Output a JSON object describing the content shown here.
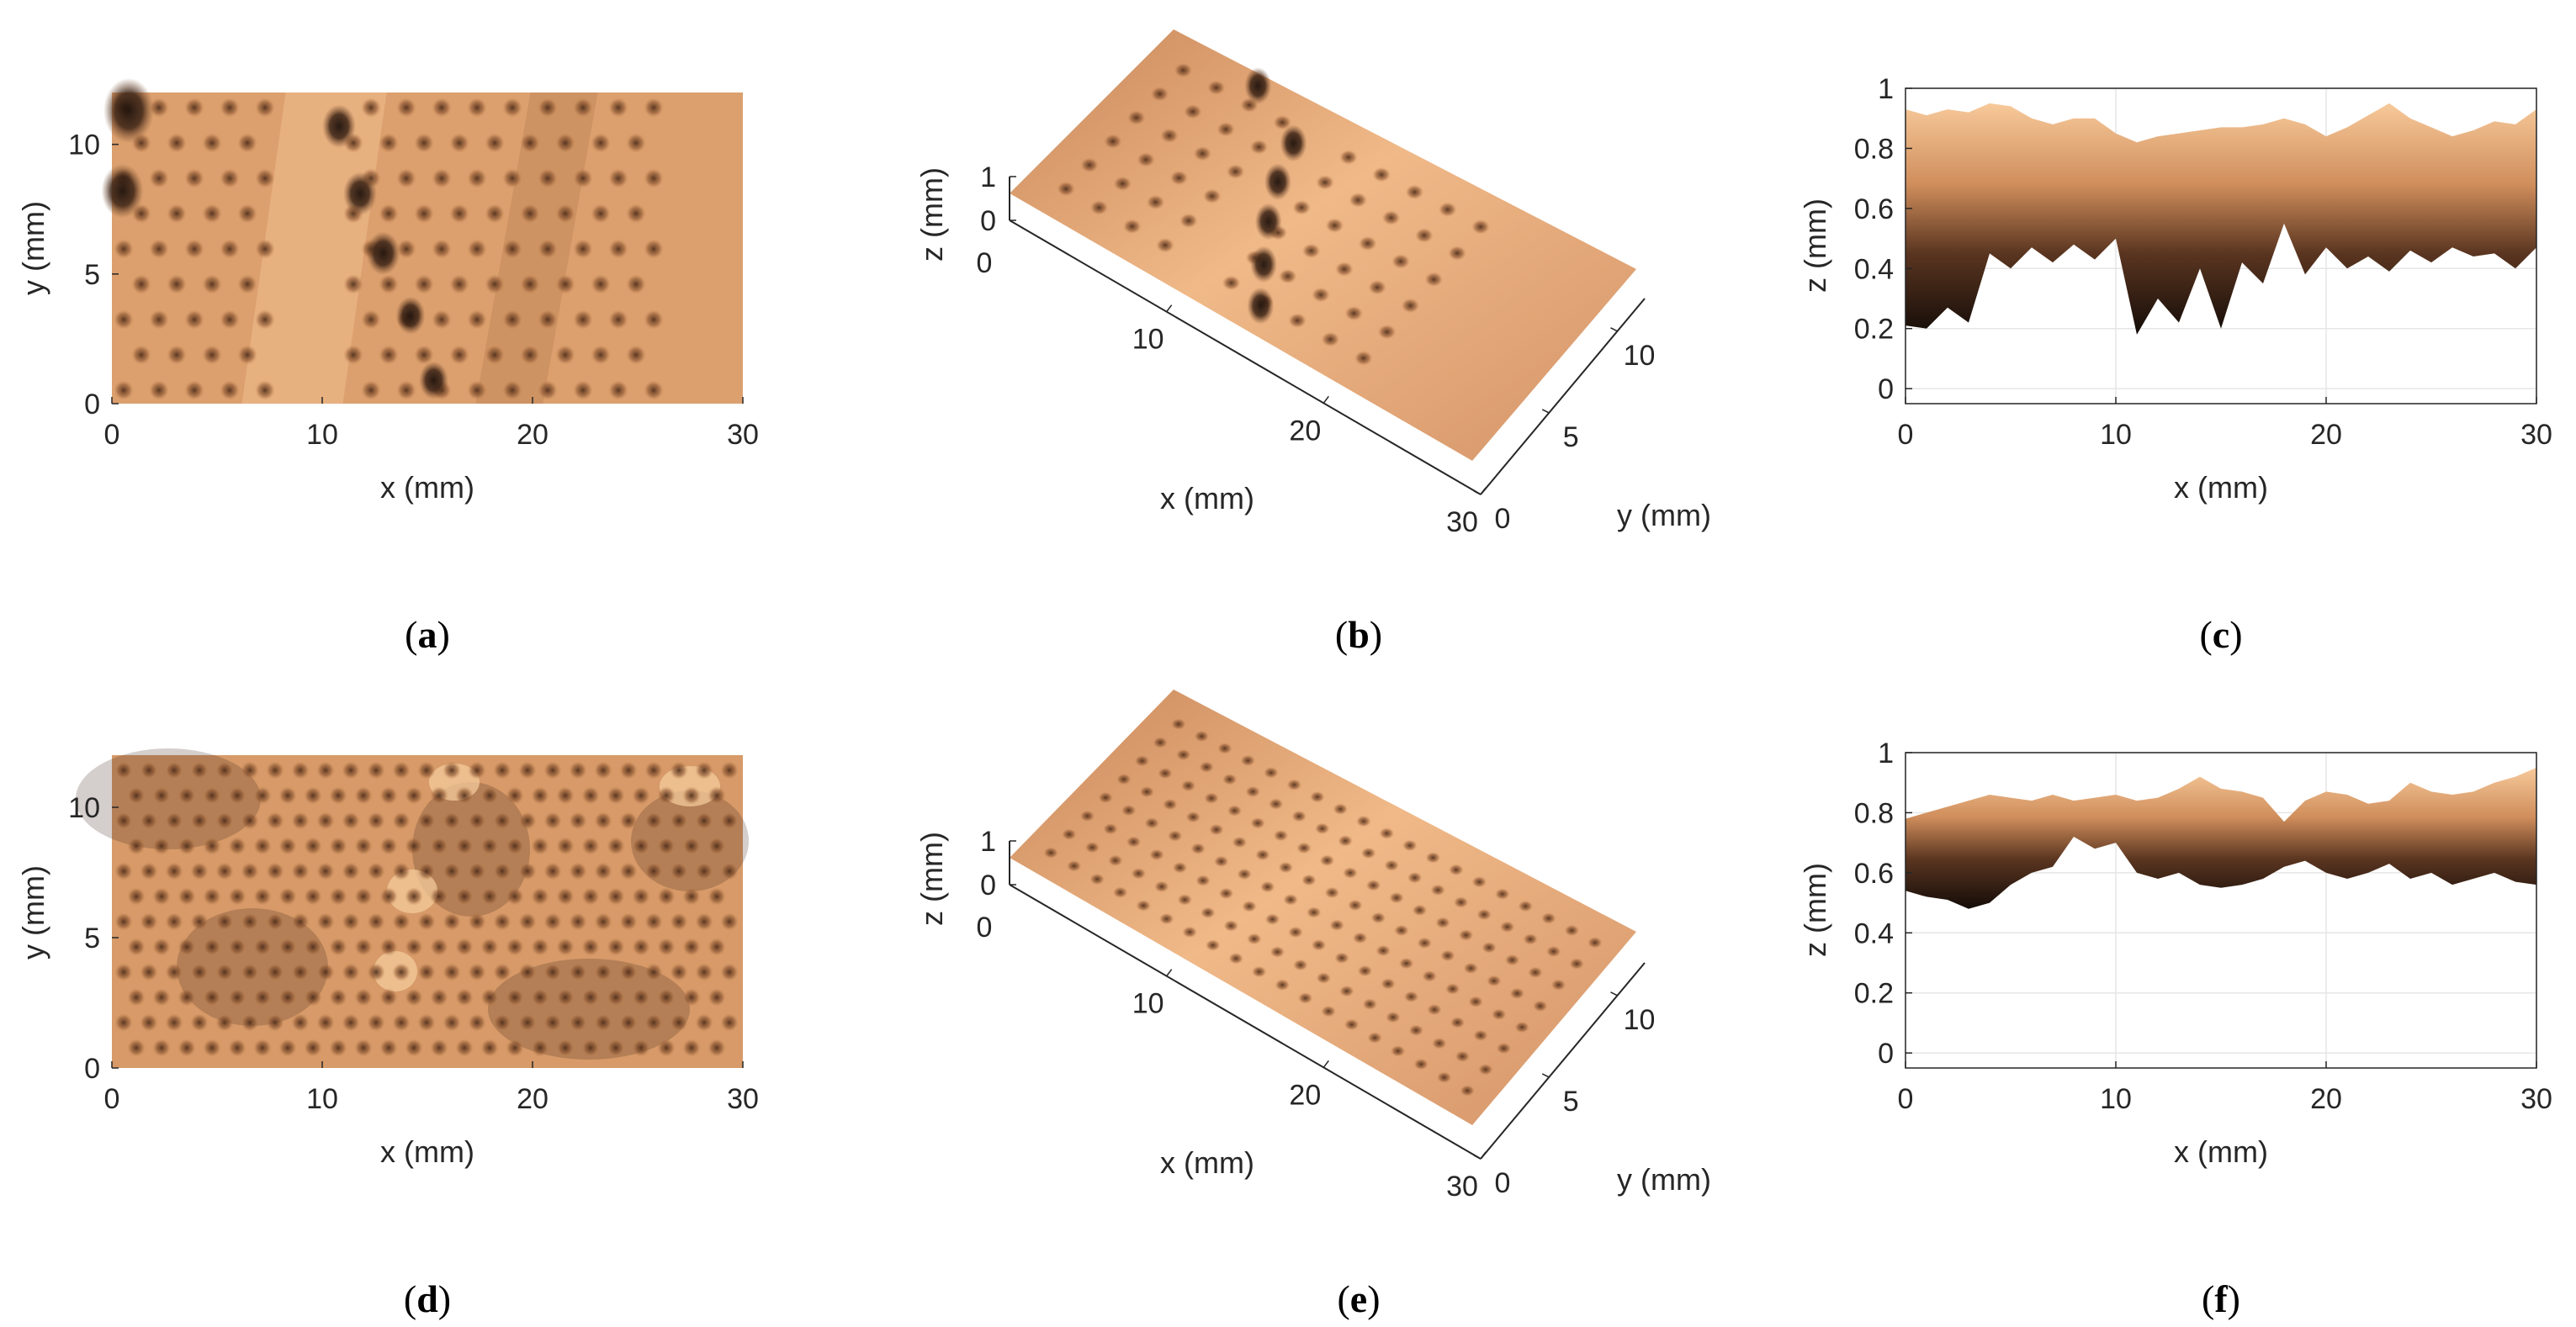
{
  "colors": {
    "surface_light": "#f2c08a",
    "surface_mid": "#c98a57",
    "surface_dark": "#1e120c",
    "axis": "#262626",
    "grid": "#e6e6e6"
  },
  "chart_data": [
    {
      "type": "heatmap",
      "caption": "a",
      "view": "top",
      "xlabel": "x (mm)",
      "ylabel": "y (mm)",
      "xticks": [
        "0",
        "10",
        "20",
        "30"
      ],
      "yticks": [
        "0",
        "5",
        "10"
      ],
      "xlim": [
        0,
        30
      ],
      "ylim": [
        0,
        12
      ],
      "holes": [
        {
          "x": 0.8,
          "y": 11.3,
          "r": 1.2
        },
        {
          "x": 0.5,
          "y": 8.2,
          "r": 1.0
        },
        {
          "x": 10.8,
          "y": 10.7,
          "r": 0.8
        },
        {
          "x": 11.8,
          "y": 8.1,
          "r": 0.8
        },
        {
          "x": 12.9,
          "y": 5.8,
          "r": 0.8
        },
        {
          "x": 14.2,
          "y": 3.4,
          "r": 0.7
        },
        {
          "x": 15.3,
          "y": 0.9,
          "r": 0.7
        }
      ]
    },
    {
      "type": "surface3d",
      "caption": "b",
      "view": "3d",
      "xlabel": "x (mm)",
      "ylabel": "y (mm)",
      "zlabel": "z (mm)",
      "xticks": [
        "10",
        "20",
        "30"
      ],
      "yticks": [
        "0",
        "5",
        "10"
      ],
      "zticks": [
        "0",
        "1"
      ],
      "zorigin": "0",
      "xlim": [
        0,
        30
      ],
      "ylim": [
        0,
        12
      ],
      "zlim": [
        0,
        1
      ]
    },
    {
      "type": "area",
      "caption": "c",
      "xlabel": "x (mm)",
      "ylabel": "z (mm)",
      "xticks": [
        "0",
        "10",
        "20",
        "30"
      ],
      "yticks": [
        "0",
        "0.2",
        "0.4",
        "0.6",
        "0.8",
        "1"
      ],
      "xlim": [
        0,
        30
      ],
      "ylim": [
        -0.05,
        1
      ],
      "x": [
        0,
        1,
        2,
        3,
        4,
        5,
        6,
        7,
        8,
        9,
        10,
        11,
        12,
        13,
        14,
        15,
        16,
        17,
        18,
        19,
        20,
        21,
        22,
        23,
        24,
        25,
        26,
        27,
        28,
        29,
        30
      ],
      "upper": [
        0.93,
        0.91,
        0.93,
        0.92,
        0.95,
        0.94,
        0.9,
        0.88,
        0.9,
        0.9,
        0.85,
        0.82,
        0.84,
        0.85,
        0.86,
        0.87,
        0.87,
        0.88,
        0.9,
        0.88,
        0.84,
        0.87,
        0.91,
        0.95,
        0.9,
        0.87,
        0.84,
        0.86,
        0.89,
        0.88,
        0.93
      ],
      "lower": [
        0.21,
        0.2,
        0.27,
        0.22,
        0.45,
        0.4,
        0.47,
        0.42,
        0.48,
        0.43,
        0.5,
        0.18,
        0.3,
        0.22,
        0.4,
        0.2,
        0.42,
        0.35,
        0.55,
        0.38,
        0.47,
        0.4,
        0.44,
        0.39,
        0.46,
        0.42,
        0.47,
        0.44,
        0.45,
        0.4,
        0.47
      ]
    },
    {
      "type": "heatmap",
      "caption": "d",
      "view": "top",
      "xlabel": "x (mm)",
      "ylabel": "y (mm)",
      "xticks": [
        "0",
        "10",
        "20",
        "30"
      ],
      "yticks": [
        "0",
        "5",
        "10"
      ],
      "xlim": [
        0,
        30
      ],
      "ylim": [
        0,
        12
      ],
      "holes": []
    },
    {
      "type": "surface3d",
      "caption": "e",
      "view": "3d",
      "xlabel": "x (mm)",
      "ylabel": "y (mm)",
      "zlabel": "z (mm)",
      "xticks": [
        "10",
        "20",
        "30"
      ],
      "yticks": [
        "0",
        "5",
        "10"
      ],
      "zticks": [
        "0",
        "1"
      ],
      "zorigin": "0",
      "xlim": [
        0,
        30
      ],
      "ylim": [
        0,
        12
      ],
      "zlim": [
        0,
        1
      ]
    },
    {
      "type": "area",
      "caption": "f",
      "xlabel": "x (mm)",
      "ylabel": "z (mm)",
      "xticks": [
        "0",
        "10",
        "20",
        "30"
      ],
      "yticks": [
        "0",
        "0.2",
        "0.4",
        "0.6",
        "0.8",
        "1"
      ],
      "xlim": [
        0,
        30
      ],
      "ylim": [
        -0.05,
        1
      ],
      "x": [
        0,
        1,
        2,
        3,
        4,
        5,
        6,
        7,
        8,
        9,
        10,
        11,
        12,
        13,
        14,
        15,
        16,
        17,
        18,
        19,
        20,
        21,
        22,
        23,
        24,
        25,
        26,
        27,
        28,
        29,
        30
      ],
      "upper": [
        0.78,
        0.8,
        0.82,
        0.84,
        0.86,
        0.85,
        0.84,
        0.86,
        0.84,
        0.85,
        0.86,
        0.84,
        0.85,
        0.88,
        0.92,
        0.88,
        0.87,
        0.85,
        0.77,
        0.84,
        0.87,
        0.86,
        0.83,
        0.84,
        0.9,
        0.87,
        0.86,
        0.87,
        0.9,
        0.92,
        0.95
      ],
      "lower": [
        0.54,
        0.52,
        0.51,
        0.48,
        0.5,
        0.56,
        0.6,
        0.62,
        0.72,
        0.68,
        0.7,
        0.6,
        0.58,
        0.6,
        0.56,
        0.55,
        0.56,
        0.58,
        0.62,
        0.64,
        0.6,
        0.58,
        0.6,
        0.63,
        0.58,
        0.6,
        0.56,
        0.58,
        0.6,
        0.57,
        0.56
      ]
    }
  ]
}
